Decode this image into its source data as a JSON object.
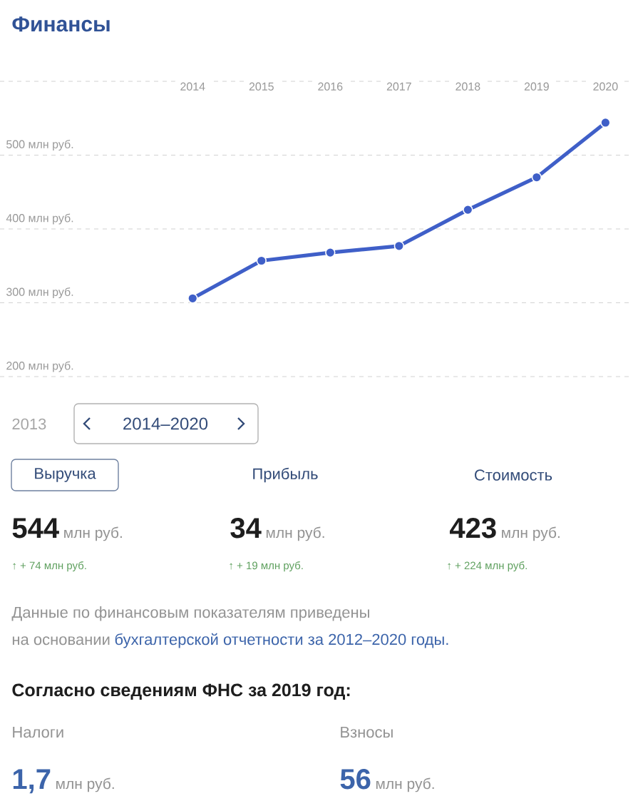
{
  "chart_data": {
    "type": "line",
    "title": "Финансы",
    "categories": [
      "2014",
      "2015",
      "2016",
      "2017",
      "2018",
      "2019",
      "2020"
    ],
    "series": [
      {
        "color": "#3f5fc8",
        "values": [
          306,
          357,
          368,
          377,
          426,
          470,
          544
        ]
      }
    ],
    "ylim": [
      200,
      600
    ],
    "yticks": [
      {
        "value": 200,
        "label": "200 млн руб."
      },
      {
        "value": 300,
        "label": "300 млн руб."
      },
      {
        "value": 400,
        "label": "400 млн руб."
      },
      {
        "value": 500,
        "label": "500 млн руб."
      },
      {
        "value": 600,
        "label": null
      }
    ],
    "grid": "y",
    "marker": "circle",
    "annotations": [
      "2013",
      "2014–2020",
      "Выручка",
      "Прибыль",
      "Стоимость",
      "544",
      "млн руб.",
      "34",
      "млн руб.",
      "423",
      "млн руб.",
      "↑ + 74 млн руб.",
      "↑ + 19 млн руб.",
      "↑ + 224 млн руб.",
      "Данные по финансовым показателям приведены",
      "на основании",
      "бухгалтерской отчетности за 2012–2020 годы.",
      "Согласно сведениям ФНС за 2019 год:",
      "Налоги",
      "Взносы",
      "1,7",
      "млн руб.",
      "56",
      "млн руб."
    ]
  }
}
